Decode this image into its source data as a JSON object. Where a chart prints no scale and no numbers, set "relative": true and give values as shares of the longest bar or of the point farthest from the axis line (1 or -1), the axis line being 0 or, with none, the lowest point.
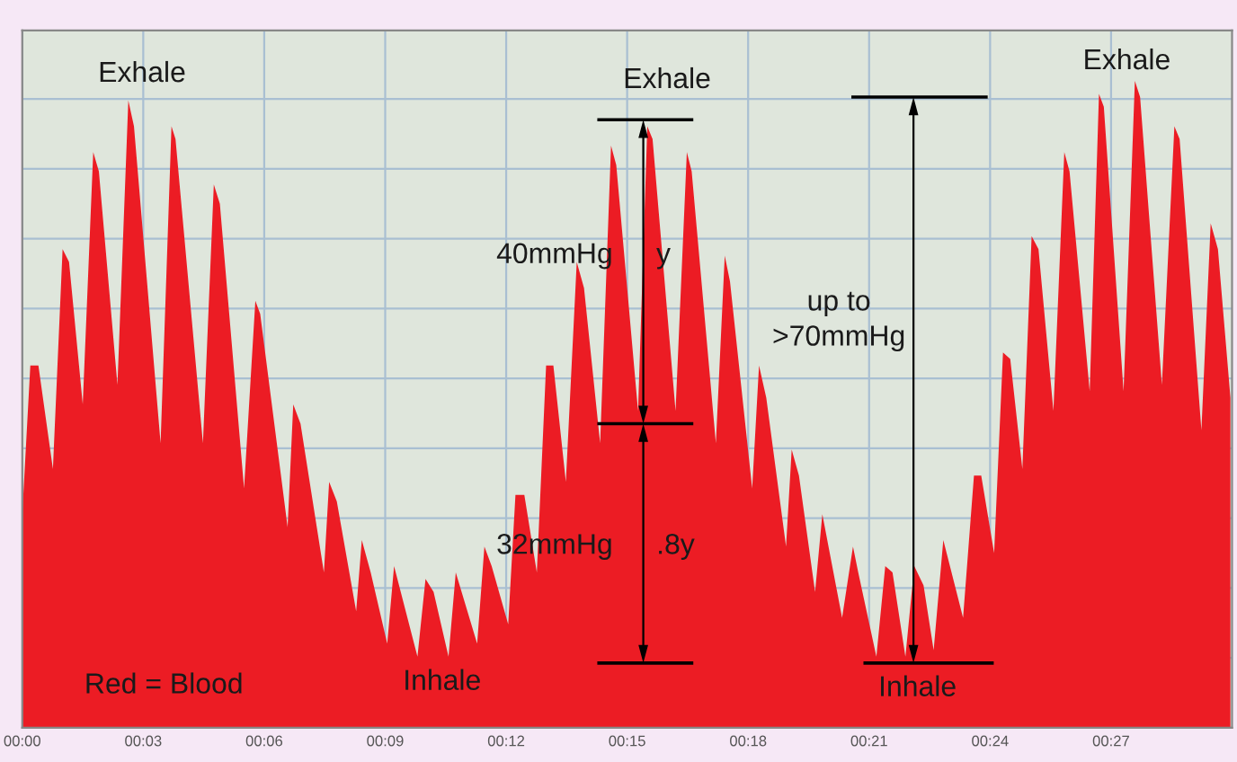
{
  "chart_data": {
    "type": "area",
    "relative": true,
    "grid": true,
    "x": [
      0,
      0.2,
      0.4,
      0.76,
      1.0,
      1.16,
      1.5,
      1.76,
      1.9,
      2.36,
      2.63,
      2.77,
      3.43,
      3.7,
      3.8,
      4.48,
      4.75,
      4.9,
      5.5,
      5.78,
      5.9,
      6.58,
      6.72,
      6.9,
      7.48,
      7.61,
      7.8,
      8.28,
      8.42,
      8.64,
      9.05,
      9.22,
      9.8,
      10.0,
      10.2,
      10.57,
      10.75,
      11.28,
      11.46,
      11.64,
      12.05,
      12.23,
      12.45,
      12.76,
      12.99,
      13.17,
      13.48,
      13.75,
      13.93,
      14.33,
      14.6,
      14.73,
      15.27,
      15.5,
      15.63,
      16.2,
      16.48,
      16.6,
      17.2,
      17.42,
      17.55,
      18.1,
      18.27,
      18.45,
      18.94,
      19.08,
      19.26,
      19.66,
      19.84,
      20.33,
      20.6,
      20.73,
      21.18,
      21.4,
      21.58,
      21.9,
      22.12,
      22.35,
      22.6,
      22.84,
      23.33,
      23.6,
      23.78,
      24.1,
      24.32,
      24.5,
      24.8,
      25.03,
      25.2,
      25.57,
      25.84,
      25.97,
      26.47,
      26.7,
      26.82,
      27.31,
      27.59,
      27.72,
      28.26,
      28.57,
      28.7,
      29.24,
      29.47,
      29.65,
      29.96
    ],
    "series": [
      {
        "color": "#ec1c24",
        "values": [
          0.33,
          0.56,
          0.56,
          0.4,
          0.74,
          0.72,
          0.5,
          0.89,
          0.86,
          0.53,
          0.97,
          0.93,
          0.44,
          0.93,
          0.91,
          0.44,
          0.84,
          0.81,
          0.37,
          0.66,
          0.64,
          0.31,
          0.5,
          0.47,
          0.24,
          0.38,
          0.35,
          0.18,
          0.29,
          0.24,
          0.13,
          0.25,
          0.11,
          0.23,
          0.21,
          0.11,
          0.24,
          0.13,
          0.28,
          0.25,
          0.16,
          0.36,
          0.36,
          0.24,
          0.56,
          0.56,
          0.38,
          0.72,
          0.68,
          0.44,
          0.9,
          0.87,
          0.49,
          0.93,
          0.91,
          0.49,
          0.89,
          0.86,
          0.44,
          0.73,
          0.69,
          0.37,
          0.56,
          0.51,
          0.28,
          0.43,
          0.39,
          0.21,
          0.33,
          0.17,
          0.28,
          0.24,
          0.11,
          0.25,
          0.24,
          0.11,
          0.25,
          0.22,
          0.12,
          0.29,
          0.17,
          0.39,
          0.39,
          0.27,
          0.58,
          0.57,
          0.4,
          0.76,
          0.74,
          0.49,
          0.89,
          0.86,
          0.52,
          0.98,
          0.96,
          0.52,
          1.0,
          0.975,
          0.53,
          0.93,
          0.91,
          0.46,
          0.78,
          0.74,
          0.51
        ]
      }
    ],
    "xlim": [
      0,
      30
    ],
    "xticks": [
      {
        "value": 0,
        "label": "00:00"
      },
      {
        "value": 3,
        "label": "00:03"
      },
      {
        "value": 6,
        "label": "00:06"
      },
      {
        "value": 9,
        "label": "00:09"
      },
      {
        "value": 12,
        "label": "00:12"
      },
      {
        "value": 15,
        "label": "00:15"
      },
      {
        "value": 18,
        "label": "00:18"
      },
      {
        "value": 21,
        "label": "00:21"
      },
      {
        "value": 24,
        "label": "00:24"
      },
      {
        "value": 27,
        "label": "00:27"
      }
    ],
    "annotations": [
      "Exhale",
      "Exhale",
      "Exhale",
      "Inhale",
      "Inhale",
      "40mmHg",
      "y",
      "32mmHg",
      ".8y",
      "up to\n>70mmHg",
      "Red = Blood"
    ]
  }
}
